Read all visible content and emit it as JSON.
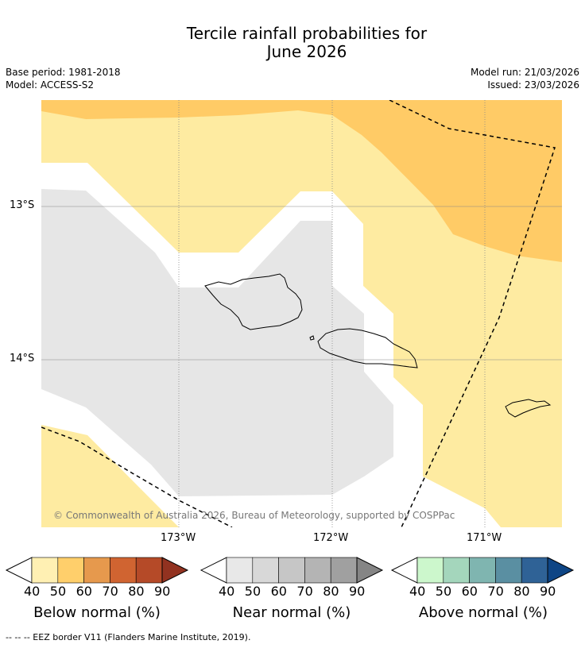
{
  "title_line1": "Tercile rainfall probabilities for",
  "title_line2": "June 2026",
  "base_period": "Base period: 1981-2018",
  "model": "Model: ACCESS-S2",
  "model_run": "Model run: 21/03/2026",
  "issued": "Issued: 23/03/2026",
  "lat_labels": [
    "13°S",
    "14°S"
  ],
  "lon_labels": [
    "173°W",
    "172°W",
    "171°W"
  ],
  "copyright": "© Commonwealth of Australia 2026, Bureau of Meteorology, supported by COSPPac",
  "footer": "-- -- -- EEZ border V11 (Flanders Marine Institute, 2019).",
  "colorbars": {
    "below": {
      "title": "Below normal (%)",
      "ticks": [
        "40",
        "50",
        "60",
        "70",
        "80",
        "90"
      ],
      "colors": [
        "#fff0b3",
        "#ffcf6b",
        "#e6994d",
        "#d06431",
        "#b54a28",
        "#923220"
      ]
    },
    "near": {
      "title": "Near normal (%)",
      "ticks": [
        "40",
        "50",
        "60",
        "70",
        "80",
        "90"
      ],
      "colors": [
        "#e8e8e8",
        "#d8d8d8",
        "#c6c6c6",
        "#b4b4b4",
        "#a0a0a0",
        "#858585"
      ]
    },
    "above": {
      "title": "Above normal (%)",
      "ticks": [
        "40",
        "50",
        "60",
        "70",
        "80",
        "90"
      ],
      "colors": [
        "#ccf7cc",
        "#a4d6bc",
        "#7fb5b0",
        "#5a8fa2",
        "#2f6296",
        "#0e4585"
      ]
    }
  },
  "legend_colors": {
    "below_40_50": "#feeba1",
    "below_50_60": "#ffcb66",
    "near_40_50": "#e6e6e6"
  },
  "regions": [
    {
      "category": "below_50_60",
      "range": "50-60%",
      "location": "northeast and top edge"
    },
    {
      "category": "below_40_50",
      "range": "40-50%",
      "location": "north-west band, east and south-west"
    },
    {
      "category": "near_40_50",
      "range": "40-50%",
      "location": "central Samoa area"
    }
  ]
}
